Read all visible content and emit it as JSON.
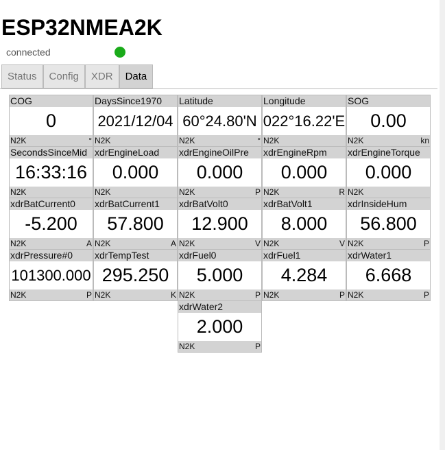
{
  "app": {
    "title": "ESP32NMEA2K",
    "status": "connected",
    "status_color": "#1aab1a"
  },
  "tabs": [
    {
      "label": "Status"
    },
    {
      "label": "Config"
    },
    {
      "label": "XDR"
    },
    {
      "label": "Data",
      "active": true
    }
  ],
  "cells": [
    {
      "name": "COG",
      "value": "0",
      "source": "N2K",
      "unit": "°"
    },
    {
      "name": "DaysSince1970",
      "value": "2021/12/04",
      "source": "N2K",
      "unit": ""
    },
    {
      "name": "Latitude",
      "value": "60°24.80'N",
      "source": "N2K",
      "unit": "°"
    },
    {
      "name": "Longitude",
      "value": "022°16.22'E",
      "source": "N2K",
      "unit": ""
    },
    {
      "name": "SOG",
      "value": "0.00",
      "source": "N2K",
      "unit": "kn"
    },
    {
      "name": "SecondsSinceMid",
      "value": "16:33:16",
      "source": "N2K",
      "unit": ""
    },
    {
      "name": "xdrEngineLoad",
      "value": "0.000",
      "source": "N2K",
      "unit": ""
    },
    {
      "name": "xdrEngineOilPre",
      "value": "0.000",
      "source": "N2K",
      "unit": "P"
    },
    {
      "name": "xdrEngineRpm",
      "value": "0.000",
      "source": "N2K",
      "unit": "R"
    },
    {
      "name": "xdrEngineTorque",
      "value": "0.000",
      "source": "N2K",
      "unit": ""
    },
    {
      "name": "xdrBatCurrent0",
      "value": "-5.200",
      "source": "N2K",
      "unit": "A"
    },
    {
      "name": "xdrBatCurrent1",
      "value": "57.800",
      "source": "N2K",
      "unit": "A"
    },
    {
      "name": "xdrBatVolt0",
      "value": "12.900",
      "source": "N2K",
      "unit": "V"
    },
    {
      "name": "xdrBatVolt1",
      "value": "8.000",
      "source": "N2K",
      "unit": "V"
    },
    {
      "name": "xdrInsideHum",
      "value": "56.800",
      "source": "N2K",
      "unit": "P"
    },
    {
      "name": "xdrPressure#0",
      "value": "101300.000",
      "source": "N2K",
      "unit": "P"
    },
    {
      "name": "xdrTempTest",
      "value": "295.250",
      "source": "N2K",
      "unit": "K"
    },
    {
      "name": "xdrFuel0",
      "value": "5.000",
      "source": "N2K",
      "unit": "P"
    },
    {
      "name": "xdrFuel1",
      "value": "4.284",
      "source": "N2K",
      "unit": "P"
    },
    {
      "name": "xdrWater1",
      "value": "6.668",
      "source": "N2K",
      "unit": "P"
    },
    {
      "name": "xdrWater2",
      "value": "2.000",
      "source": "N2K",
      "unit": "P"
    }
  ]
}
